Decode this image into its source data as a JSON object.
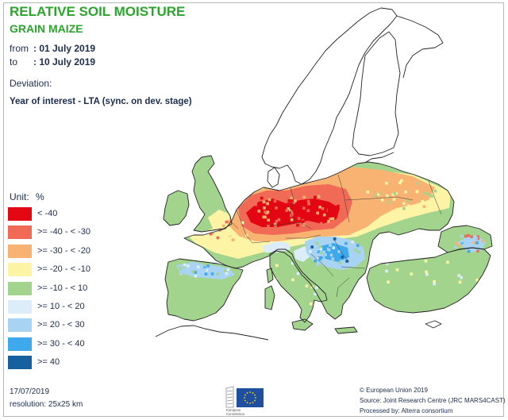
{
  "header": {
    "title": "RELATIVE SOIL MOISTURE",
    "subtitle": "GRAIN MAIZE"
  },
  "period": {
    "from_label": "from",
    "from_value": ": 01 July 2019",
    "to_label": "to",
    "to_value": ": 10 July 2019"
  },
  "deviation": {
    "label": "Deviation:",
    "description": "Year of interest - LTA (sync. on dev. stage)"
  },
  "legend": {
    "unit_label": "Unit:",
    "unit": "%",
    "items": [
      {
        "label": "< -40",
        "color": "#e30613"
      },
      {
        "label": ">= -40 - < -30",
        "color": "#f06a55"
      },
      {
        "label": ">= -30 - < -20",
        "color": "#f8b272"
      },
      {
        "label": ">= -20 - < -10",
        "color": "#fdf4a6"
      },
      {
        "label": ">= -10 - < 10",
        "color": "#a3d48d"
      },
      {
        "label": ">= 10 - < 20",
        "color": "#dcedf9"
      },
      {
        "label": ">= 20 - < 30",
        "color": "#a8d3f3"
      },
      {
        "label": ">= 30 - < 40",
        "color": "#3fa9ee"
      },
      {
        "label": ">= 40",
        "color": "#17609f"
      }
    ]
  },
  "map": {
    "no_data_color": "#ffffff",
    "coastline_color": "#222222",
    "border_color": "#3a3a3a"
  },
  "footer": {
    "date": "17/07/2019",
    "resolution": "resolution: 25x25 km",
    "copyright": "© European Union 2019",
    "source": "Source: Joint Research Centre (JRC MARS4CAST)",
    "processed_by": "Processed by: Alterra consortium"
  },
  "logo": {
    "text_line1": "European",
    "text_line2": "Commission",
    "flag_color": "#1f4fa0",
    "star_color": "#ffdd00"
  },
  "colors": {
    "title": "#2ba52b",
    "text": "#1b2d4f"
  }
}
